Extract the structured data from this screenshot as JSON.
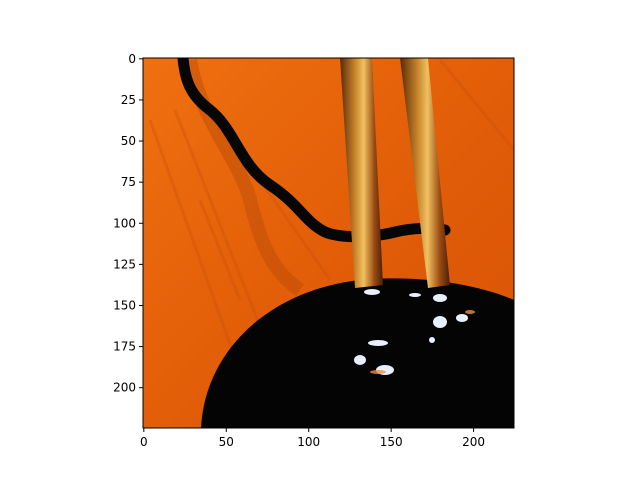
{
  "chart_data": {
    "type": "heatmap",
    "title": "",
    "xlabel": "",
    "ylabel": "",
    "xlim": [
      0,
      224
    ],
    "ylim": [
      224,
      0
    ],
    "x_ticks": [
      0,
      50,
      100,
      150,
      200
    ],
    "y_ticks": [
      0,
      25,
      50,
      75,
      100,
      125,
      150,
      175,
      200
    ],
    "x_tick_labels": [
      "0",
      "50",
      "100",
      "150",
      "200"
    ],
    "y_tick_labels": [
      "0",
      "25",
      "50",
      "75",
      "100",
      "125",
      "150",
      "175",
      "200"
    ],
    "grid": false,
    "image_content": {
      "background_color": "#e8620a",
      "object_color": "#040404",
      "rod_color": "#b5651d",
      "highlight_color": "#e8f0ff"
    }
  }
}
